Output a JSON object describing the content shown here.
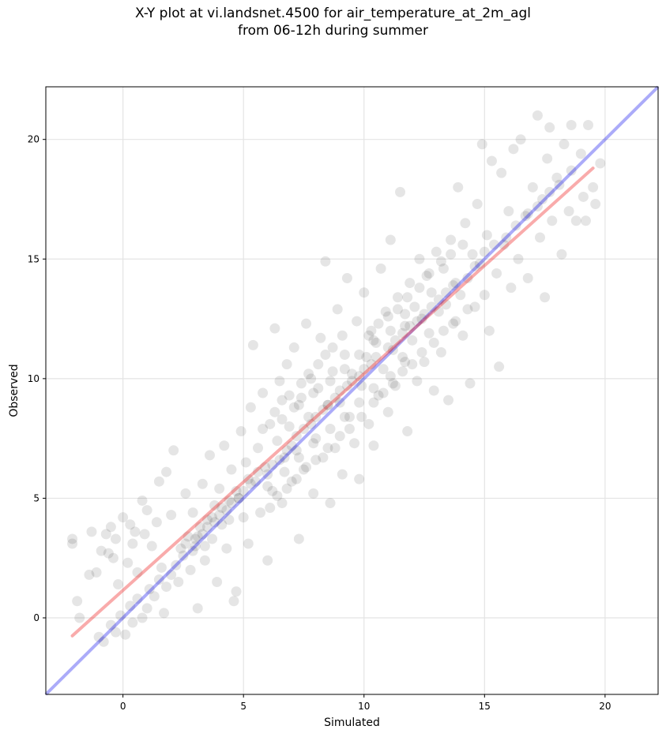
{
  "chart_data": {
    "type": "scatter",
    "title_line1": "X-Y plot at vi.landsnet.4500 for air_temperature_at_2m_agl",
    "title_line2": "from 06-12h during summer",
    "xlabel": "Simulated",
    "ylabel": "Observed",
    "xlim": [
      -3.2,
      22.2
    ],
    "ylim": [
      -3.2,
      22.2
    ],
    "xticks": [
      0,
      5,
      10,
      15,
      20
    ],
    "yticks": [
      0,
      5,
      10,
      15,
      20
    ],
    "xtick_labels": [
      "0",
      "5",
      "10",
      "15",
      "20"
    ],
    "ytick_labels": [
      "0",
      "5",
      "10",
      "15",
      "20"
    ],
    "grid": true,
    "point_color": "#000000",
    "point_opacity": 0.1,
    "one_to_one_line": {
      "color": "#0000ee",
      "x": [
        -3.2,
        22.2
      ],
      "y": [
        -3.2,
        22.2
      ]
    },
    "fit_line": {
      "color": "#ee2222",
      "x": [
        -2.1,
        19.5
      ],
      "y": [
        -0.75,
        18.8
      ]
    },
    "points": [
      [
        -2.1,
        3.3
      ],
      [
        -2.1,
        3.1
      ],
      [
        -1.9,
        0.7
      ],
      [
        -1.8,
        0.0
      ],
      [
        -1.3,
        3.6
      ],
      [
        -1.4,
        1.8
      ],
      [
        -1.1,
        1.9
      ],
      [
        -0.9,
        2.8
      ],
      [
        -0.7,
        3.5
      ],
      [
        -0.6,
        2.7
      ],
      [
        -0.5,
        3.8
      ],
      [
        -0.4,
        2.5
      ],
      [
        -0.3,
        3.3
      ],
      [
        -0.2,
        1.4
      ],
      [
        0.0,
        4.2
      ],
      [
        0.2,
        2.3
      ],
      [
        0.3,
        3.9
      ],
      [
        0.4,
        3.1
      ],
      [
        0.5,
        3.6
      ],
      [
        0.6,
        1.9
      ],
      [
        0.8,
        4.9
      ],
      [
        0.9,
        3.5
      ],
      [
        1.0,
        4.5
      ],
      [
        1.2,
        3.0
      ],
      [
        1.4,
        4.0
      ],
      [
        1.5,
        5.7
      ],
      [
        1.6,
        2.1
      ],
      [
        1.8,
        6.1
      ],
      [
        2.0,
        4.3
      ],
      [
        2.1,
        7.0
      ],
      [
        -1.0,
        -0.8
      ],
      [
        -0.8,
        -1.0
      ],
      [
        -0.5,
        -0.3
      ],
      [
        -0.3,
        -0.6
      ],
      [
        -0.1,
        0.1
      ],
      [
        0.1,
        -0.7
      ],
      [
        0.3,
        0.5
      ],
      [
        0.4,
        -0.2
      ],
      [
        0.6,
        0.8
      ],
      [
        0.8,
        0.0
      ],
      [
        1.0,
        0.4
      ],
      [
        1.1,
        1.2
      ],
      [
        1.3,
        0.9
      ],
      [
        1.5,
        1.6
      ],
      [
        1.7,
        0.2
      ],
      [
        1.8,
        1.3
      ],
      [
        2.0,
        1.8
      ],
      [
        2.2,
        2.2
      ],
      [
        2.3,
        1.5
      ],
      [
        2.5,
        2.6
      ],
      [
        2.6,
        5.2
      ],
      [
        2.7,
        3.4
      ],
      [
        2.8,
        2.0
      ],
      [
        2.9,
        4.4
      ],
      [
        3.0,
        3.0
      ],
      [
        3.1,
        0.4
      ],
      [
        3.2,
        3.8
      ],
      [
        3.3,
        5.6
      ],
      [
        3.4,
        2.4
      ],
      [
        3.5,
        4.1
      ],
      [
        3.6,
        6.8
      ],
      [
        3.7,
        3.3
      ],
      [
        3.8,
        4.7
      ],
      [
        3.9,
        1.5
      ],
      [
        4.0,
        5.4
      ],
      [
        4.1,
        3.9
      ],
      [
        4.2,
        7.2
      ],
      [
        4.3,
        2.9
      ],
      [
        4.4,
        4.9
      ],
      [
        4.5,
        6.2
      ],
      [
        4.6,
        0.7
      ],
      [
        4.7,
        1.1
      ],
      [
        4.8,
        5.0
      ],
      [
        4.9,
        7.8
      ],
      [
        5.0,
        4.2
      ],
      [
        5.1,
        6.5
      ],
      [
        5.2,
        3.1
      ],
      [
        5.3,
        8.8
      ],
      [
        5.4,
        11.4
      ],
      [
        5.5,
        5.7
      ],
      [
        5.6,
        7.1
      ],
      [
        5.7,
        4.4
      ],
      [
        5.8,
        9.4
      ],
      [
        5.9,
        6.3
      ],
      [
        6.0,
        2.4
      ],
      [
        6.1,
        8.1
      ],
      [
        6.2,
        5.3
      ],
      [
        6.3,
        12.1
      ],
      [
        6.4,
        7.4
      ],
      [
        6.5,
        9.9
      ],
      [
        6.6,
        4.8
      ],
      [
        6.7,
        6.7
      ],
      [
        6.8,
        10.6
      ],
      [
        6.9,
        8.0
      ],
      [
        7.0,
        5.7
      ],
      [
        7.1,
        11.3
      ],
      [
        7.2,
        7.0
      ],
      [
        7.3,
        3.3
      ],
      [
        7.4,
        9.2
      ],
      [
        7.5,
        6.2
      ],
      [
        7.6,
        12.3
      ],
      [
        7.7,
        8.4
      ],
      [
        7.8,
        10.0
      ],
      [
        7.9,
        5.2
      ],
      [
        8.0,
        7.5
      ],
      [
        8.1,
        9.6
      ],
      [
        8.2,
        11.7
      ],
      [
        8.3,
        6.7
      ],
      [
        8.4,
        14.9
      ],
      [
        8.5,
        8.9
      ],
      [
        8.6,
        4.8
      ],
      [
        8.7,
        10.3
      ],
      [
        8.8,
        7.1
      ],
      [
        8.9,
        12.9
      ],
      [
        9.0,
        9.0
      ],
      [
        9.1,
        6.0
      ],
      [
        9.2,
        11.0
      ],
      [
        9.3,
        14.2
      ],
      [
        9.4,
        8.4
      ],
      [
        9.5,
        10.2
      ],
      [
        9.6,
        7.3
      ],
      [
        9.7,
        12.4
      ],
      [
        9.8,
        5.8
      ],
      [
        9.9,
        9.7
      ],
      [
        10.0,
        13.6
      ],
      [
        10.1,
        10.9
      ],
      [
        10.2,
        8.1
      ],
      [
        10.3,
        12.0
      ],
      [
        10.4,
        7.2
      ],
      [
        10.5,
        11.5
      ],
      [
        10.6,
        9.3
      ],
      [
        10.7,
        14.6
      ],
      [
        10.8,
        10.4
      ],
      [
        10.9,
        12.8
      ],
      [
        11.0,
        8.6
      ],
      [
        11.1,
        15.8
      ],
      [
        11.2,
        11.2
      ],
      [
        11.3,
        9.7
      ],
      [
        11.4,
        13.4
      ],
      [
        11.5,
        17.8
      ],
      [
        11.6,
        10.9
      ],
      [
        11.7,
        12.2
      ],
      [
        11.8,
        7.8
      ],
      [
        11.9,
        14.0
      ],
      [
        12.0,
        11.6
      ],
      [
        12.1,
        13.0
      ],
      [
        12.2,
        9.9
      ],
      [
        12.3,
        15.0
      ],
      [
        12.4,
        12.5
      ],
      [
        12.5,
        10.7
      ],
      [
        12.6,
        14.3
      ],
      [
        12.7,
        11.9
      ],
      [
        12.8,
        13.6
      ],
      [
        12.9,
        9.5
      ],
      [
        13.0,
        15.3
      ],
      [
        13.1,
        12.8
      ],
      [
        13.2,
        11.1
      ],
      [
        13.3,
        14.6
      ],
      [
        13.4,
        13.1
      ],
      [
        13.5,
        9.1
      ],
      [
        13.6,
        15.8
      ],
      [
        13.7,
        12.3
      ],
      [
        13.8,
        14.0
      ],
      [
        13.9,
        18.0
      ],
      [
        14.0,
        13.5
      ],
      [
        14.1,
        11.8
      ],
      [
        14.2,
        16.5
      ],
      [
        14.3,
        14.2
      ],
      [
        14.4,
        9.8
      ],
      [
        14.5,
        15.2
      ],
      [
        14.6,
        13.0
      ],
      [
        14.7,
        17.3
      ],
      [
        14.8,
        14.8
      ],
      [
        14.9,
        19.8
      ],
      [
        15.0,
        13.5
      ],
      [
        15.1,
        16.0
      ],
      [
        15.2,
        12.0
      ],
      [
        15.3,
        19.1
      ],
      [
        15.5,
        14.4
      ],
      [
        15.6,
        10.5
      ],
      [
        15.7,
        18.6
      ],
      [
        15.8,
        15.6
      ],
      [
        16.0,
        17.0
      ],
      [
        16.1,
        13.8
      ],
      [
        16.2,
        19.6
      ],
      [
        16.4,
        15.0
      ],
      [
        16.5,
        20.0
      ],
      [
        16.7,
        16.8
      ],
      [
        16.8,
        14.2
      ],
      [
        17.0,
        18.0
      ],
      [
        17.2,
        21.0
      ],
      [
        17.3,
        15.9
      ],
      [
        17.4,
        17.5
      ],
      [
        17.5,
        13.4
      ],
      [
        17.6,
        19.2
      ],
      [
        17.7,
        20.5
      ],
      [
        17.8,
        16.6
      ],
      [
        18.0,
        18.4
      ],
      [
        18.2,
        15.2
      ],
      [
        18.3,
        19.8
      ],
      [
        18.5,
        17.0
      ],
      [
        18.6,
        20.6
      ],
      [
        18.8,
        16.6
      ],
      [
        19.0,
        19.4
      ],
      [
        19.1,
        17.6
      ],
      [
        19.2,
        16.6
      ],
      [
        19.3,
        20.6
      ],
      [
        19.5,
        18.0
      ],
      [
        19.6,
        17.3
      ],
      [
        19.8,
        19.0
      ],
      [
        5.6,
        6.1
      ],
      [
        6.0,
        6.0
      ],
      [
        6.2,
        6.4
      ],
      [
        6.5,
        6.6
      ],
      [
        6.8,
        7.0
      ],
      [
        7.0,
        7.2
      ],
      [
        7.2,
        7.6
      ],
      [
        7.5,
        7.9
      ],
      [
        7.8,
        8.1
      ],
      [
        8.0,
        8.4
      ],
      [
        8.3,
        8.7
      ],
      [
        8.5,
        8.9
      ],
      [
        8.8,
        9.2
      ],
      [
        9.0,
        9.5
      ],
      [
        9.3,
        9.7
      ],
      [
        9.5,
        9.9
      ],
      [
        9.8,
        10.1
      ],
      [
        10.0,
        10.4
      ],
      [
        10.3,
        10.6
      ],
      [
        10.5,
        10.9
      ],
      [
        3.0,
        3.3
      ],
      [
        3.3,
        3.5
      ],
      [
        3.5,
        3.8
      ],
      [
        3.8,
        4.0
      ],
      [
        4.0,
        4.3
      ],
      [
        4.3,
        4.5
      ],
      [
        4.5,
        4.8
      ],
      [
        4.8,
        5.0
      ],
      [
        5.0,
        5.3
      ],
      [
        5.3,
        5.6
      ],
      [
        11.0,
        11.3
      ],
      [
        11.3,
        11.6
      ],
      [
        11.6,
        11.9
      ],
      [
        11.9,
        12.2
      ],
      [
        12.2,
        12.4
      ],
      [
        12.5,
        12.7
      ],
      [
        12.8,
        13.0
      ],
      [
        13.1,
        13.3
      ],
      [
        13.4,
        13.6
      ],
      [
        13.7,
        13.9
      ],
      [
        6.3,
        8.6
      ],
      [
        6.6,
        9.1
      ],
      [
        6.9,
        9.3
      ],
      [
        7.1,
        8.8
      ],
      [
        7.4,
        9.8
      ],
      [
        7.7,
        10.2
      ],
      [
        8.1,
        10.6
      ],
      [
        8.4,
        11.0
      ],
      [
        8.7,
        11.3
      ],
      [
        9.1,
        11.8
      ],
      [
        6.1,
        4.6
      ],
      [
        6.4,
        5.1
      ],
      [
        6.8,
        5.4
      ],
      [
        7.2,
        5.8
      ],
      [
        7.6,
        6.3
      ],
      [
        8.0,
        6.6
      ],
      [
        8.5,
        7.1
      ],
      [
        9.0,
        7.6
      ],
      [
        9.4,
        7.9
      ],
      [
        9.9,
        8.4
      ],
      [
        2.4,
        2.9
      ],
      [
        2.6,
        3.1
      ],
      [
        2.9,
        2.8
      ],
      [
        3.1,
        3.4
      ],
      [
        3.4,
        3.0
      ],
      [
        3.7,
        4.2
      ],
      [
        4.1,
        4.6
      ],
      [
        4.4,
        4.1
      ],
      [
        4.7,
        5.3
      ],
      [
        5.2,
        5.8
      ],
      [
        10.2,
        11.8
      ],
      [
        10.6,
        12.3
      ],
      [
        11.0,
        12.6
      ],
      [
        11.4,
        12.9
      ],
      [
        11.8,
        13.4
      ],
      [
        12.3,
        13.8
      ],
      [
        12.7,
        14.4
      ],
      [
        13.2,
        14.9
      ],
      [
        13.6,
        15.2
      ],
      [
        14.1,
        15.6
      ],
      [
        10.4,
        9.0
      ],
      [
        10.8,
        9.4
      ],
      [
        11.2,
        9.8
      ],
      [
        11.6,
        10.3
      ],
      [
        12.0,
        10.6
      ],
      [
        12.4,
        11.1
      ],
      [
        12.9,
        11.5
      ],
      [
        13.3,
        12.0
      ],
      [
        13.8,
        12.4
      ],
      [
        14.3,
        12.9
      ],
      [
        5.8,
        7.9
      ],
      [
        6.6,
        8.3
      ],
      [
        7.3,
        8.9
      ],
      [
        7.9,
        9.4
      ],
      [
        8.6,
        9.9
      ],
      [
        9.2,
        10.4
      ],
      [
        9.8,
        11.0
      ],
      [
        10.4,
        11.6
      ],
      [
        11.1,
        12.0
      ],
      [
        11.7,
        12.7
      ],
      [
        6.0,
        5.5
      ],
      [
        6.7,
        6.1
      ],
      [
        7.3,
        6.7
      ],
      [
        7.9,
        7.3
      ],
      [
        8.6,
        7.9
      ],
      [
        9.2,
        8.4
      ],
      [
        9.8,
        9.0
      ],
      [
        10.4,
        9.6
      ],
      [
        11.1,
        10.1
      ],
      [
        11.7,
        10.7
      ],
      [
        14.6,
        14.7
      ],
      [
        15.0,
        15.3
      ],
      [
        15.4,
        15.6
      ],
      [
        15.9,
        15.9
      ],
      [
        16.3,
        16.4
      ],
      [
        16.8,
        16.9
      ],
      [
        17.2,
        17.2
      ],
      [
        17.7,
        17.8
      ],
      [
        18.1,
        18.1
      ],
      [
        18.6,
        18.7
      ]
    ]
  }
}
